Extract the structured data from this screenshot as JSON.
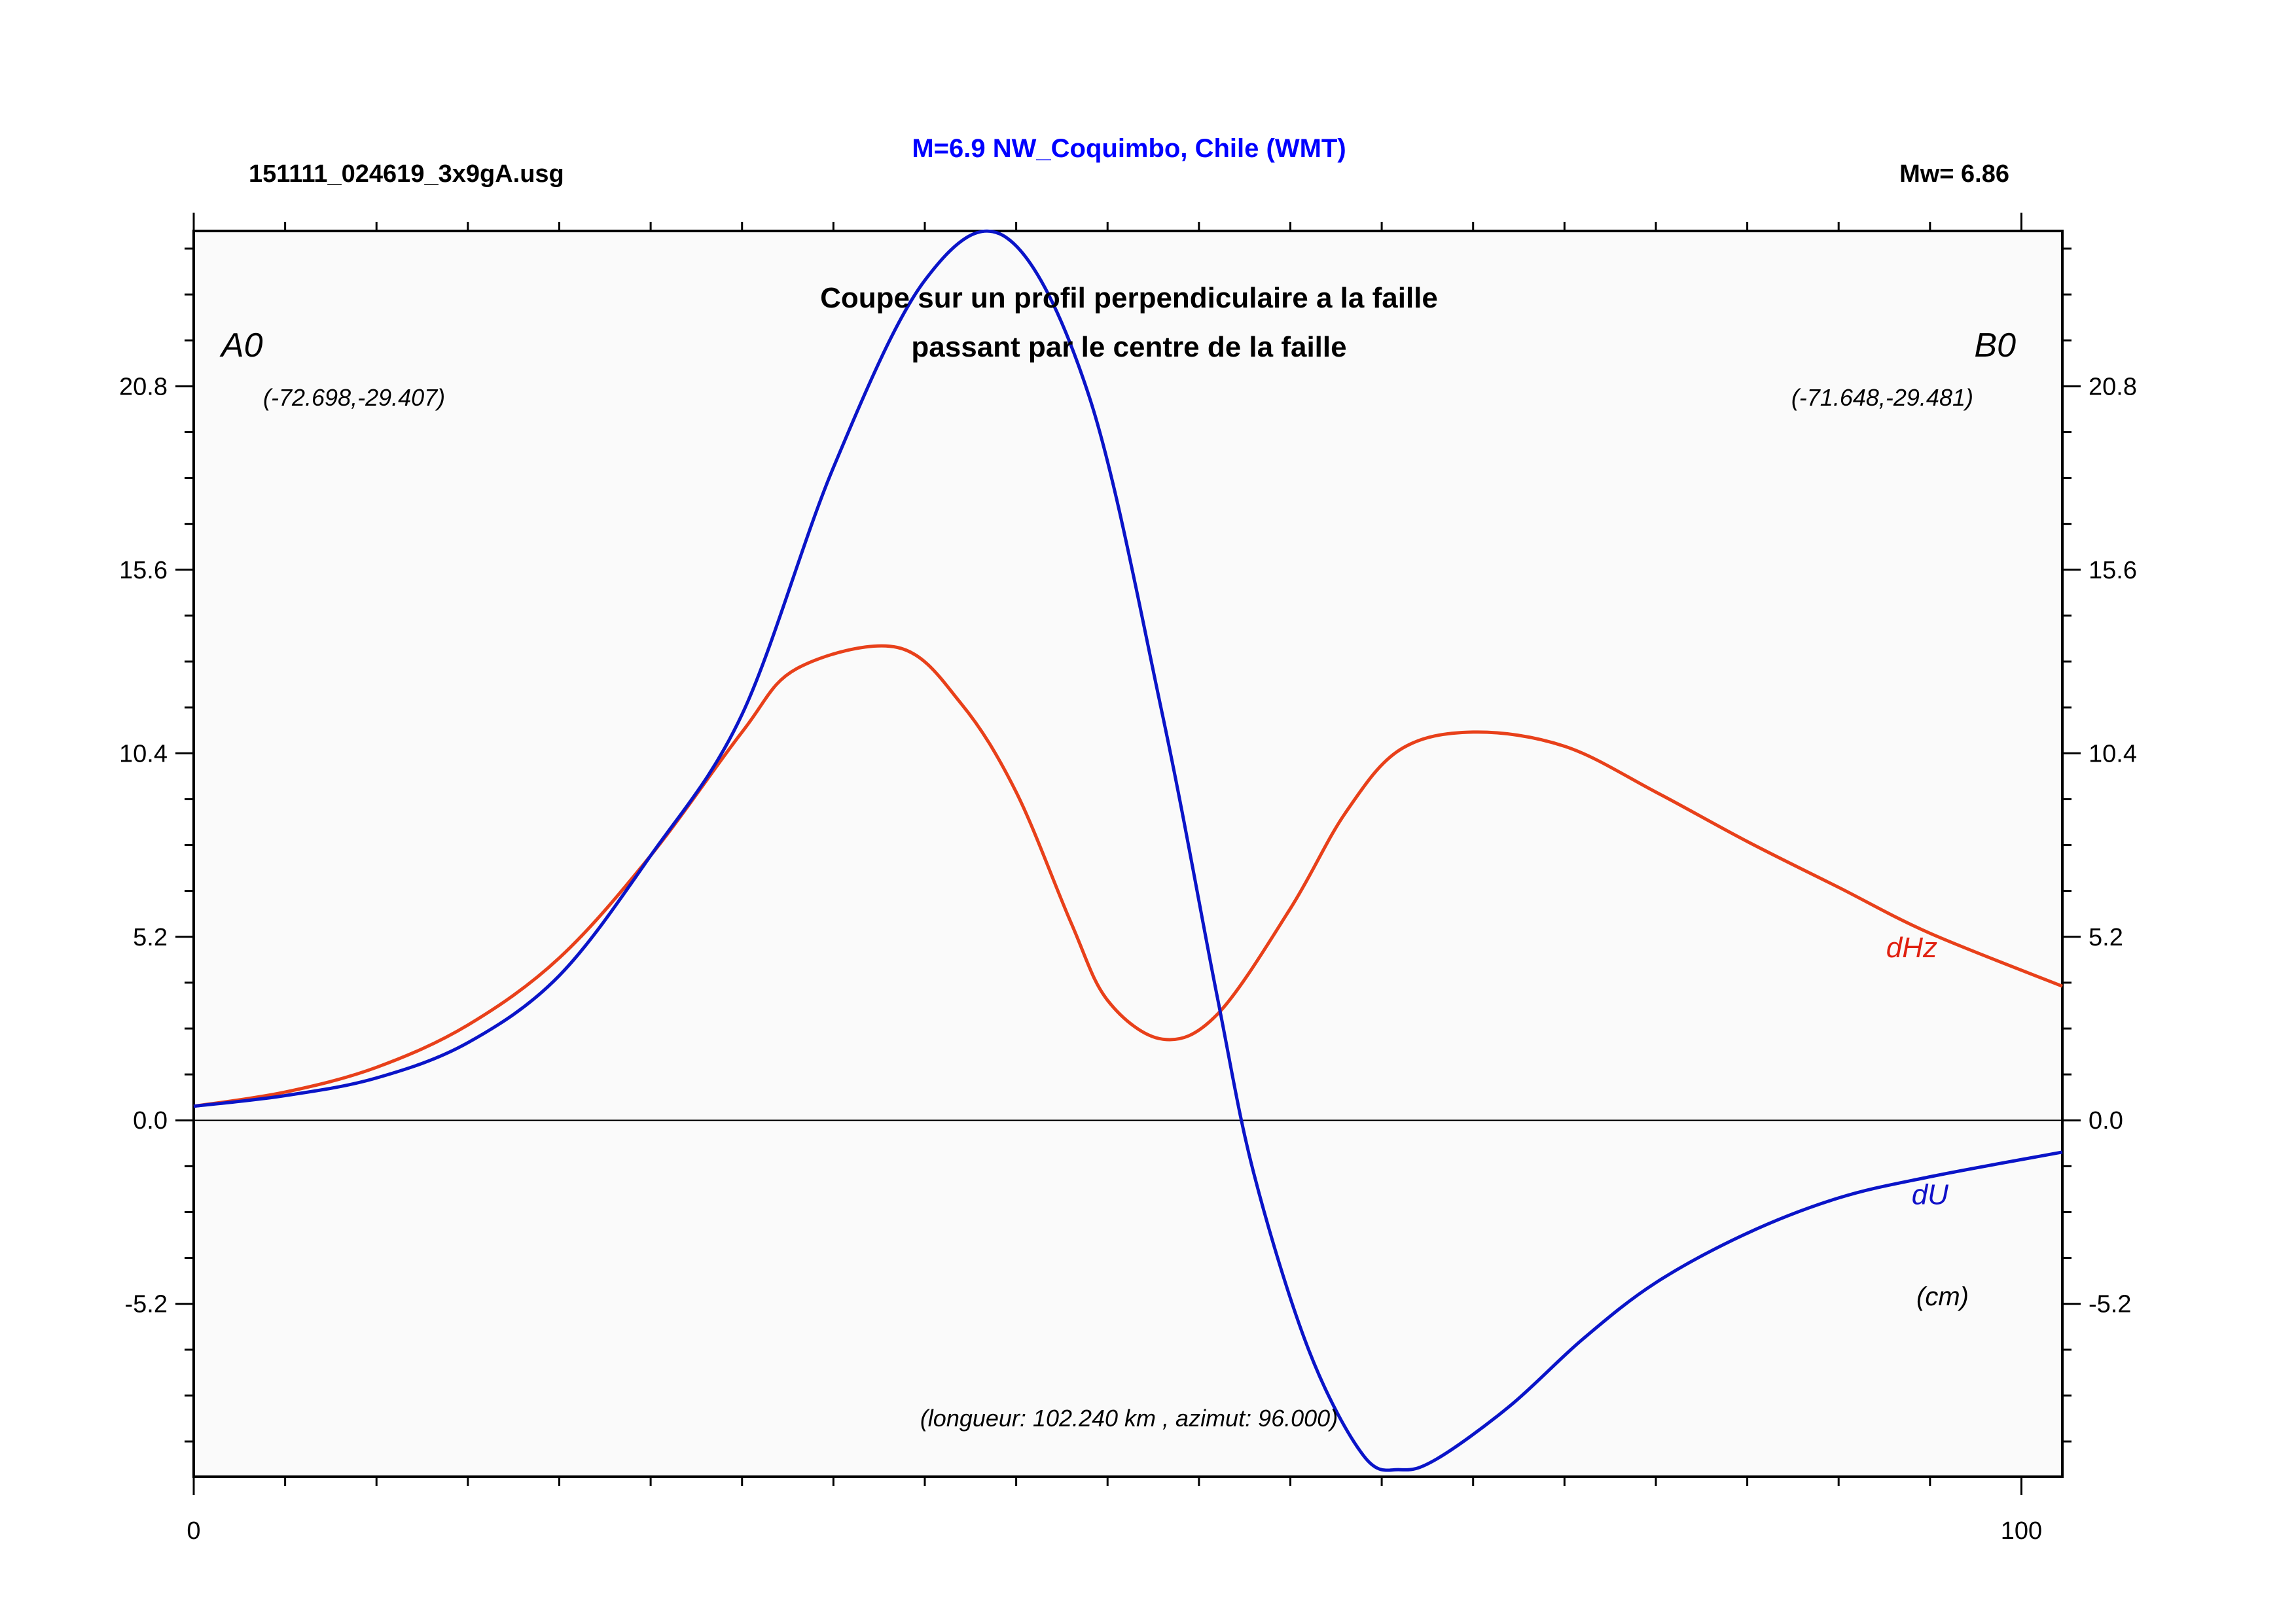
{
  "header": {
    "filename": "151111_024619_3x9gA.usg",
    "event_title": "M=6.9 NW_Coquimbo, Chile (WMT)",
    "magnitude": "Mw= 6.86"
  },
  "colors": {
    "title_blue": "#0000ff",
    "du_line": "#0a14c8",
    "dhz_line": "#e8401a",
    "dhz_label": "#e02010",
    "du_label": "#1010c8",
    "plot_bg": "#fafafa"
  },
  "chart_data": {
    "type": "line",
    "title": "Coupe sur un profil perpendiculaire a la faille",
    "subtitle": "passant par le centre de la faille",
    "profile_info": "(longueur: 102.240 km , azimut: 96.000)",
    "unit_label": "(cm)",
    "start_point": {
      "label": "A0",
      "coords": "(-72.698,-29.407)"
    },
    "end_point": {
      "label": "B0",
      "coords": "(-71.648,-29.481)"
    },
    "xlim": [
      0,
      102.24
    ],
    "ylim": [
      -10.1,
      25.2
    ],
    "x_ticks": [
      0,
      100
    ],
    "x_tick_labels": [
      "0",
      "100"
    ],
    "y_ticks": [
      20.8,
      15.6,
      10.4,
      5.2,
      0.0,
      -5.2
    ],
    "y_tick_labels": [
      "20.8",
      "15.6",
      "10.4",
      "5.2",
      "0.0",
      "-5.2"
    ],
    "zero_line": true,
    "grid": false,
    "series": [
      {
        "name": "dHz",
        "label_at": [
          94,
          4.9
        ],
        "points": [
          [
            0,
            0.4
          ],
          [
            5,
            0.8
          ],
          [
            10,
            1.5
          ],
          [
            15,
            2.7
          ],
          [
            20,
            4.6
          ],
          [
            25,
            7.5
          ],
          [
            30,
            11.0
          ],
          [
            33,
            12.8
          ],
          [
            38.5,
            13.4
          ],
          [
            42,
            11.8
          ],
          [
            45,
            9.3
          ],
          [
            48,
            5.6
          ],
          [
            50,
            3.4
          ],
          [
            53,
            2.3
          ],
          [
            56,
            3.0
          ],
          [
            60,
            6.0
          ],
          [
            63,
            8.7
          ],
          [
            66,
            10.5
          ],
          [
            70,
            11.0
          ],
          [
            75,
            10.6
          ],
          [
            80,
            9.3
          ],
          [
            85,
            7.9
          ],
          [
            90,
            6.6
          ],
          [
            95,
            5.3
          ],
          [
            102.24,
            3.8
          ]
        ]
      },
      {
        "name": "dU",
        "label_at": [
          95,
          -2.1
        ],
        "points": [
          [
            0,
            0.4
          ],
          [
            5,
            0.7
          ],
          [
            10,
            1.2
          ],
          [
            15,
            2.2
          ],
          [
            20,
            4.1
          ],
          [
            25,
            7.5
          ],
          [
            30,
            11.5
          ],
          [
            35,
            18.5
          ],
          [
            40,
            23.8
          ],
          [
            44.5,
            25.0
          ],
          [
            49,
            20.5
          ],
          [
            53,
            11.5
          ],
          [
            56,
            3.5
          ],
          [
            58,
            -1.5
          ],
          [
            61,
            -6.5
          ],
          [
            64,
            -9.5
          ],
          [
            66,
            -9.9
          ],
          [
            68,
            -9.6
          ],
          [
            72,
            -8.1
          ],
          [
            76,
            -6.2
          ],
          [
            80,
            -4.6
          ],
          [
            85,
            -3.2
          ],
          [
            90,
            -2.2
          ],
          [
            95,
            -1.6
          ],
          [
            102.24,
            -0.9
          ]
        ]
      }
    ]
  }
}
